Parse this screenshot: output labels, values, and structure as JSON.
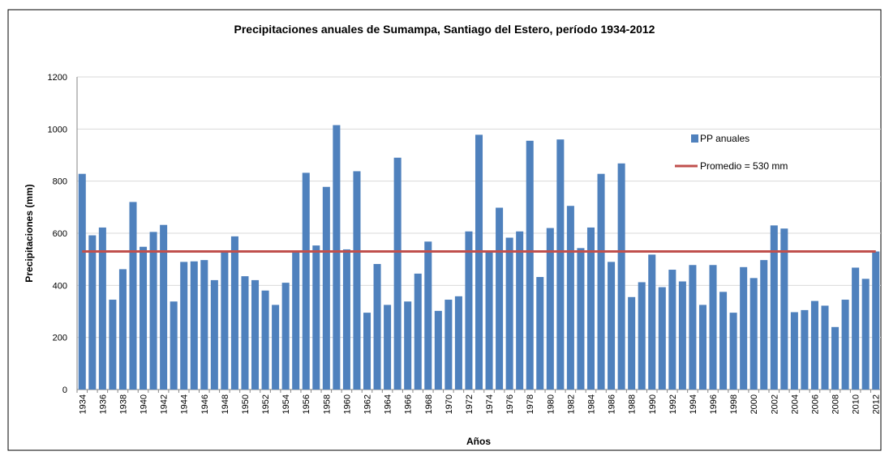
{
  "chart_data": {
    "type": "bar",
    "title": "Precipitaciones anuales de Sumampa,  Santiago del Estero, período 1934-2012",
    "x_label": "Años",
    "y_label": "Precipitaciones (mm)",
    "categories": [
      "1934",
      null,
      "1936",
      null,
      "1938",
      null,
      "1940",
      null,
      "1942",
      null,
      "1944",
      null,
      "1946",
      null,
      "1948",
      null,
      "1950",
      null,
      "1952",
      null,
      "1954",
      null,
      "1956",
      null,
      "1958",
      null,
      "1960",
      null,
      "1962",
      null,
      "1964",
      null,
      "1966",
      null,
      "1968",
      null,
      "1970",
      null,
      "1972",
      null,
      "1974",
      null,
      "1976",
      null,
      "1978",
      null,
      "1980",
      null,
      "1982",
      null,
      "1984",
      null,
      "1986",
      null,
      "1988",
      null,
      "1990",
      null,
      "1992",
      null,
      "1994",
      null,
      "1996",
      null,
      "1998",
      null,
      "2000",
      null,
      "2002",
      null,
      "2004",
      null,
      "2006",
      null,
      "2008",
      null,
      "2010",
      null,
      "2012"
    ],
    "series": [
      {
        "name": "PP anuales",
        "color": "#4f81bd",
        "values": [
          828,
          592,
          622,
          345,
          462,
          720,
          548,
          605,
          632,
          338,
          490,
          492,
          497,
          420,
          530,
          588,
          435,
          420,
          380,
          325,
          410,
          530,
          832,
          553,
          778,
          1015,
          538,
          838,
          295,
          482,
          325,
          890,
          338,
          445,
          568,
          302,
          345,
          358,
          607,
          978,
          530,
          698,
          583,
          607,
          955,
          432,
          620,
          960,
          705,
          543,
          622,
          828,
          490,
          868,
          355,
          412,
          518,
          393,
          460,
          415,
          478,
          325,
          478,
          375,
          295,
          470,
          428,
          497,
          630,
          618,
          297,
          305,
          340,
          322,
          240,
          345,
          468,
          425,
          530
        ]
      }
    ],
    "reference_line": {
      "name": "Promedio = 530 mm",
      "value": 530,
      "color": "#c0504d"
    },
    "ylim": [
      0,
      1200
    ],
    "yticks": [
      0,
      200,
      400,
      600,
      800,
      1000,
      1200
    ],
    "grid": true
  }
}
